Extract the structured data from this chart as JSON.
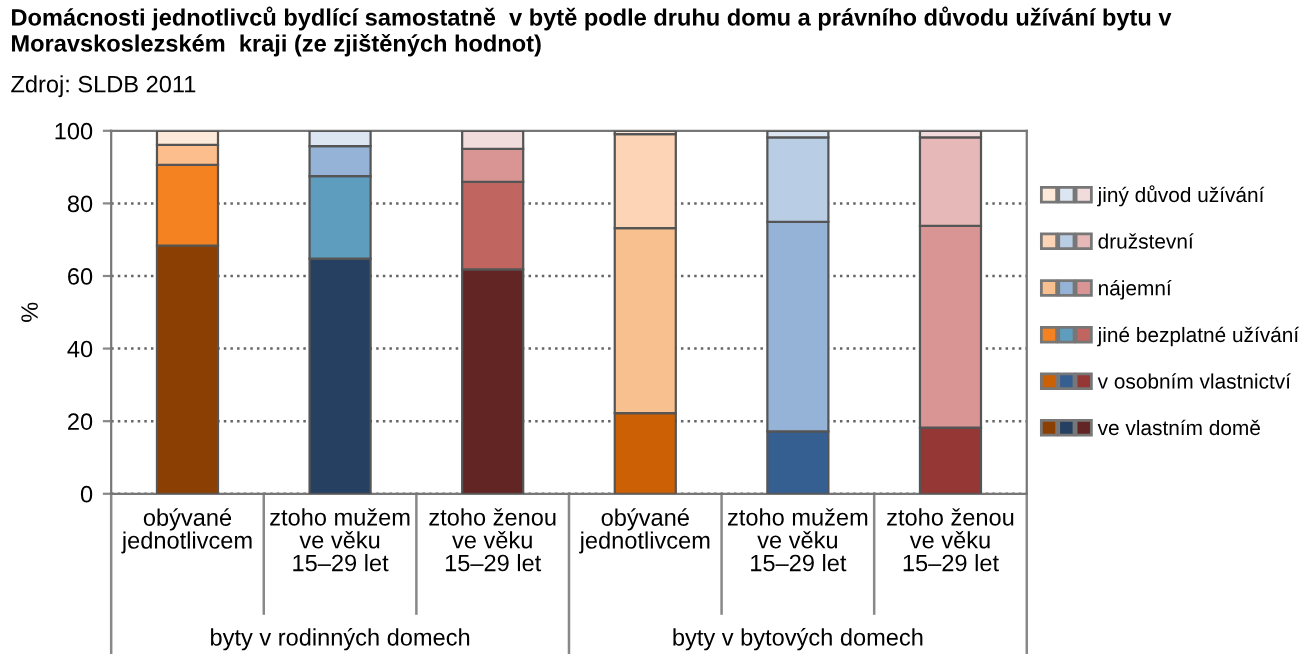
{
  "chart_data": {
    "type": "bar",
    "stacked": true,
    "title": "Domácnosti jednotlivců bydlící samostatně  v bytě podle druhu domu a právního důvodu užívání bytu v Moravskoslezském  kraji (ze zjištěných hodnot)",
    "subtitle": "Zdroj: SLDB 2011",
    "ylabel": "%",
    "categories": [
      "obývané\njednotlivcem",
      "ztoho mužem\nve věku\n15–29 let",
      "ztoho ženou\nve věku\n15–29 let",
      "obývané\njednotlivcem",
      "ztoho mužem\nve věku\n15–29 let",
      "ztoho ženou\nve věku\n15–29 let"
    ],
    "annotations": [
      "byty v rodinných domech",
      "byty v bytových domech"
    ],
    "series": [
      {
        "name": "ve vlastním domě",
        "colors": [
          "#8b3f02",
          "#254061",
          "#632523",
          "#8b3f02",
          "#254061",
          "#632523"
        ],
        "values": [
          68.4,
          64.8,
          61.8,
          null,
          null,
          null
        ]
      },
      {
        "name": "v osobním vlastnictví",
        "colors": [
          "#cc6004",
          "#365f91",
          "#953735",
          "#cc6004",
          "#365f91",
          "#953735"
        ],
        "values": [
          null,
          null,
          null,
          22.2,
          17.2,
          18.2
        ]
      },
      {
        "name": "jiné bezplatné užívání",
        "colors": [
          "#f58220",
          "#5f9dbf",
          "#c0655f",
          "#f58220",
          "#5f9dbf",
          "#c0655f"
        ],
        "values": [
          22.2,
          22.7,
          24.1,
          null,
          null,
          null
        ]
      },
      {
        "name": "nájemní",
        "colors": [
          "#fbbe8c",
          "#95b3d7",
          "#d99594",
          "#f9c08f",
          "#95b3d7",
          "#d99594"
        ],
        "values": [
          5.5,
          8.3,
          9.1,
          51.0,
          57.7,
          55.6
        ]
      },
      {
        "name": "družstevní",
        "colors": [
          "#fdd4b5",
          "#b9cde5",
          "#595959",
          "#fdd4b5",
          "#b9cde5",
          "#e6b9b8"
        ],
        "values": [
          null,
          null,
          null,
          25.9,
          23.3,
          24.4
        ]
      },
      {
        "name": "jiný důvod užívání",
        "colors": [
          "#fde9d9",
          "#dce6f2",
          "#f2dcdb",
          "#fde9d9",
          "#dce6f2",
          "#f2dcdb"
        ],
        "values": [
          3.9,
          4.2,
          5.0,
          0.9,
          1.8,
          1.8
        ]
      }
    ],
    "ylim": [
      0,
      100
    ],
    "yticks": [
      0,
      20,
      40,
      60,
      80,
      100
    ],
    "grid": "y",
    "legend": "right"
  }
}
